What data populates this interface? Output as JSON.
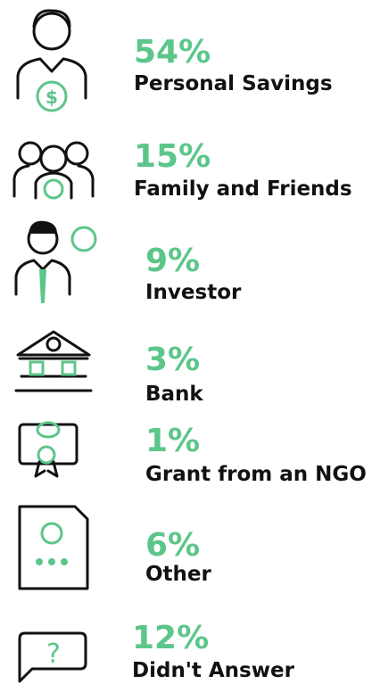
{
  "chart_data": {
    "type": "icon-list",
    "categories": [
      "Personal Savings",
      "Family and Friends",
      "Investor",
      "Bank",
      "Grant from an NGO",
      "Other",
      "Didn't Answer"
    ],
    "values": [
      54,
      15,
      9,
      3,
      1,
      6,
      12
    ],
    "value_labels": [
      "54%",
      "15%",
      "9%",
      "3%",
      "1%",
      "6%",
      "12%"
    ],
    "color": "#5cc68a"
  }
}
